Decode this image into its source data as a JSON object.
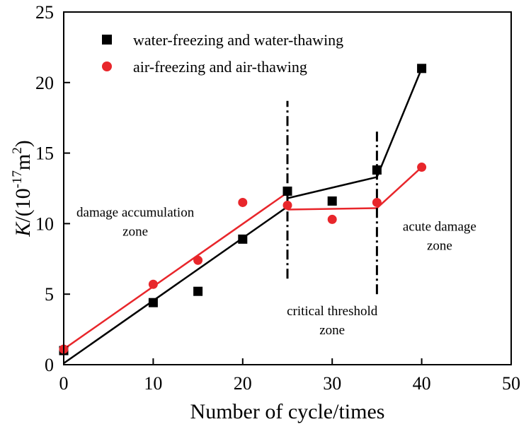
{
  "chart_data": {
    "type": "scatter",
    "title": "",
    "xlabel": "Number of cycle/times",
    "ylabel": {
      "italic": "K",
      "prefix": "/(10",
      "exponent": "-17",
      "unit": "m",
      "unit_exponent": "2",
      "suffix": ")"
    },
    "xlim": [
      0,
      50
    ],
    "ylim": [
      0,
      25
    ],
    "xticks": [
      0,
      10,
      20,
      30,
      40,
      50
    ],
    "yticks": [
      0,
      5,
      10,
      15,
      20,
      25
    ],
    "grid": false,
    "legend_position": "top-left",
    "series": [
      {
        "name": "water-freezing and water-thawing",
        "marker": "square",
        "color": "#000000",
        "points": [
          [
            0,
            1.0
          ],
          [
            10,
            4.4
          ],
          [
            15,
            5.2
          ],
          [
            20,
            8.9
          ],
          [
            25,
            12.3
          ],
          [
            30,
            11.6
          ],
          [
            35,
            13.8
          ],
          [
            40,
            21.0
          ]
        ],
        "fit_lines": [
          [
            [
              0,
              0.1
            ],
            [
              25,
              11.2
            ]
          ],
          [
            [
              25,
              11.8
            ],
            [
              35,
              13.3
            ]
          ],
          [
            [
              35,
              13.3
            ],
            [
              40,
              21.0
            ]
          ]
        ]
      },
      {
        "name": "air-freezing and air-thawing",
        "marker": "circle",
        "color": "#e8262b",
        "points": [
          [
            0,
            1.1
          ],
          [
            10,
            5.7
          ],
          [
            15,
            7.4
          ],
          [
            20,
            11.5
          ],
          [
            25,
            11.3
          ],
          [
            30,
            10.3
          ],
          [
            35,
            11.5
          ],
          [
            40,
            14.0
          ]
        ],
        "fit_lines": [
          [
            [
              0,
              1.1
            ],
            [
              25,
              12.2
            ]
          ],
          [
            [
              25,
              11.0
            ],
            [
              35,
              11.1
            ]
          ],
          [
            [
              35,
              11.1
            ],
            [
              40,
              14.0
            ]
          ]
        ]
      }
    ],
    "threshold_lines": [
      {
        "x": 25,
        "y_from": 6.1,
        "y_to": 18.7
      },
      {
        "x": 35,
        "y_from": 5.0,
        "y_to": 16.7
      }
    ],
    "annotations": [
      {
        "id": "damage-accumulation",
        "lines": [
          "damage accumulation",
          "zone"
        ],
        "x": 8.0,
        "y": 10.5
      },
      {
        "id": "critical-threshold",
        "lines": [
          "critical threshold",
          "zone"
        ],
        "x": 30.0,
        "y": 3.5
      },
      {
        "id": "acute-damage",
        "lines": [
          "acute damage",
          "zone"
        ],
        "x": 42.0,
        "y": 9.5
      }
    ]
  }
}
